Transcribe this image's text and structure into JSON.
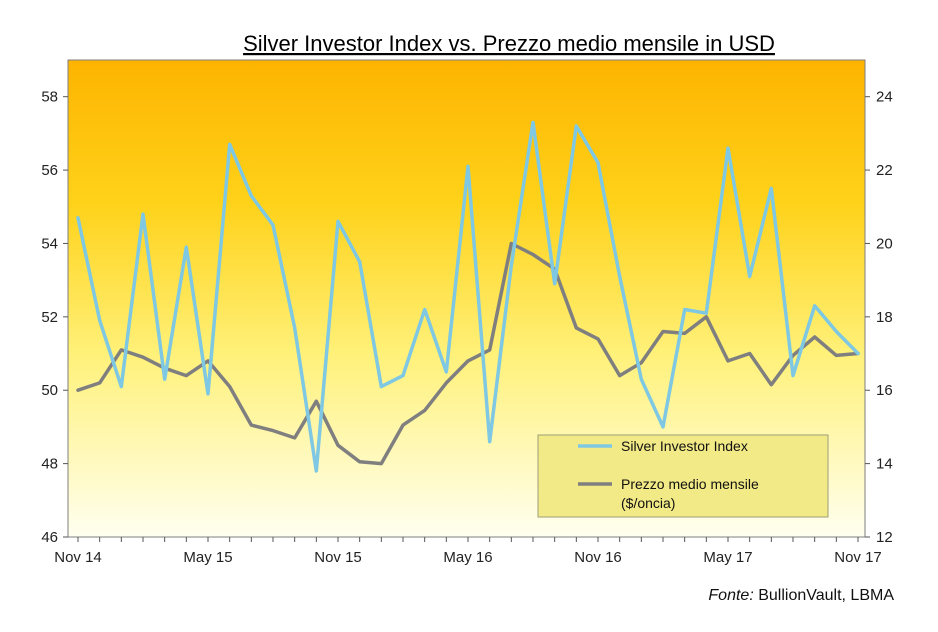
{
  "chart_data": {
    "type": "line",
    "title": "Silver Investor  Index vs. Prezzo medio mensile in USD",
    "x_tick_labels": [
      "Nov 14",
      "May 15",
      "Nov 15",
      "May 16",
      "Nov 16",
      "May 17",
      "Nov 17"
    ],
    "x_tick_months": [
      0,
      6,
      12,
      18,
      24,
      30,
      36
    ],
    "ylim_left": [
      46,
      59
    ],
    "left_ticks": [
      46,
      48,
      50,
      52,
      54,
      56,
      58
    ],
    "ylim_right": [
      12,
      25
    ],
    "right_ticks": [
      12,
      14,
      16,
      18,
      20,
      22,
      24
    ],
    "x_months": [
      0,
      1,
      2,
      3,
      4,
      5,
      6,
      7,
      8,
      9,
      10,
      11,
      12,
      13,
      14,
      15,
      16,
      17,
      18,
      19,
      20,
      21,
      22,
      23,
      24,
      25,
      26,
      27,
      28,
      29,
      30,
      31,
      32,
      33,
      34,
      35,
      36
    ],
    "series": [
      {
        "name": "Silver Investor Index",
        "axis": "left",
        "color": "#7EC8E3",
        "values": [
          54.7,
          51.9,
          50.1,
          54.8,
          50.3,
          53.9,
          49.9,
          56.7,
          55.3,
          54.5,
          51.7,
          47.8,
          54.6,
          53.5,
          50.1,
          50.4,
          52.2,
          50.5,
          56.1,
          48.6,
          53.4,
          57.3,
          52.9,
          57.2,
          56.2,
          53.1,
          50.3,
          49.0,
          52.2,
          52.1,
          56.6,
          53.1,
          55.5,
          50.4,
          52.3,
          51.6,
          51.0
        ]
      },
      {
        "name": "Prezzo medio mensile ($/oncia)",
        "axis": "right",
        "color": "#7F7F7F",
        "values": [
          16.0,
          16.2,
          17.1,
          16.9,
          16.6,
          16.4,
          16.8,
          16.1,
          15.05,
          14.9,
          14.7,
          15.7,
          14.5,
          14.05,
          14.0,
          15.05,
          15.45,
          16.2,
          16.8,
          17.1,
          20.0,
          19.7,
          19.3,
          17.7,
          17.4,
          16.4,
          16.75,
          17.6,
          17.55,
          18.0,
          16.8,
          17.0,
          16.15,
          16.95,
          17.45,
          16.95,
          17.0
        ]
      }
    ],
    "legend": {
      "position": "bottom-right",
      "entries": [
        "Silver Investor Index",
        "Prezzo medio mensile",
        "($/oncia)"
      ]
    },
    "background": {
      "top": "#FDB400",
      "bottom": "#FFFFF0"
    },
    "grid": false
  },
  "source": {
    "label": "Fonte:",
    "text": "BullionVault, LBMA"
  }
}
